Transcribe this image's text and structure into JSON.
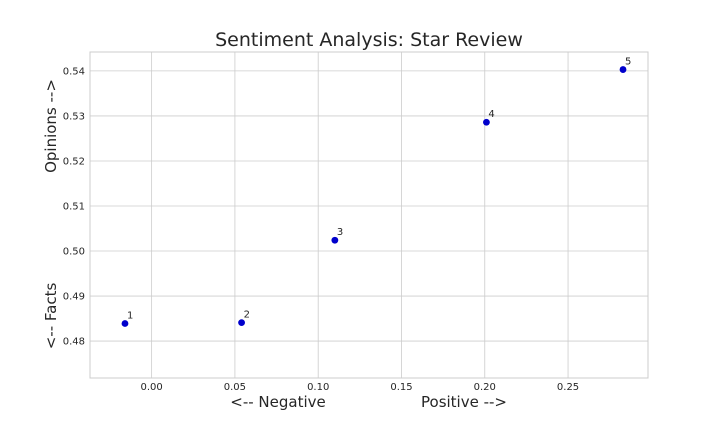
{
  "chart_data": {
    "type": "scatter",
    "title": "Sentiment Analysis: Star Review",
    "xlabel_left": "<-- Negative",
    "xlabel_right": "Positive -->",
    "ylabel_bottom": "<-- Facts",
    "ylabel_top": "Opinions -->",
    "xlim": [
      -0.037,
      0.298
    ],
    "ylim": [
      0.4718,
      0.5442
    ],
    "xticks": [
      0.0,
      0.05,
      0.1,
      0.15,
      0.2,
      0.25
    ],
    "xtick_labels": [
      "0.00",
      "0.05",
      "0.10",
      "0.15",
      "0.20",
      "0.25"
    ],
    "yticks": [
      0.48,
      0.49,
      0.5,
      0.51,
      0.52,
      0.53,
      0.54
    ],
    "ytick_labels": [
      "0.48",
      "0.49",
      "0.50",
      "0.51",
      "0.52",
      "0.53",
      "0.54"
    ],
    "grid": true,
    "marker_color": "#0000cc",
    "points": [
      {
        "label": "1",
        "x": -0.016,
        "y": 0.4839
      },
      {
        "label": "2",
        "x": 0.054,
        "y": 0.4841
      },
      {
        "label": "3",
        "x": 0.11,
        "y": 0.5024
      },
      {
        "label": "4",
        "x": 0.201,
        "y": 0.5286
      },
      {
        "label": "5",
        "x": 0.283,
        "y": 0.5403
      }
    ]
  }
}
